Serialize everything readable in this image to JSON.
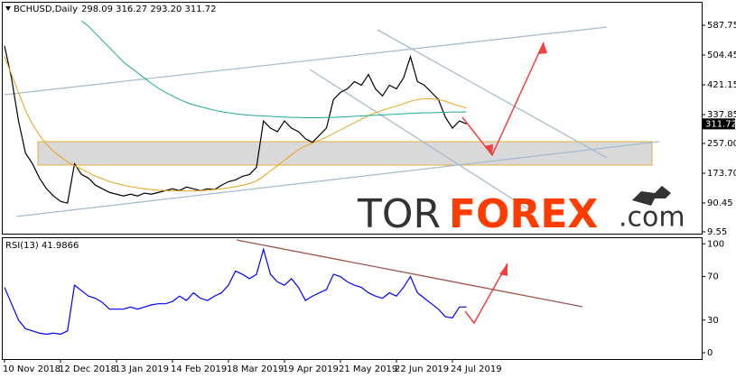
{
  "chart_data": [
    {
      "type": "line",
      "title": "BCHUSD,Daily",
      "subtitle": "298.09 316.27 293.20 311.72",
      "categories": [
        "10 Nov 2018",
        null,
        null,
        null,
        null,
        null,
        null,
        null,
        "12 Dec 2018",
        null,
        null,
        null,
        null,
        null,
        null,
        null,
        "13 Jan 2019",
        null,
        null,
        null,
        null,
        null,
        null,
        null,
        "14 Feb 2019",
        null,
        null,
        null,
        null,
        null,
        null,
        null,
        "18 Mar 2019",
        null,
        null,
        null,
        null,
        null,
        null,
        null,
        "19 Apr 2019",
        null,
        null,
        null,
        null,
        null,
        null,
        null,
        "21 May 2019",
        null,
        null,
        null,
        null,
        null,
        null,
        null,
        "22 Jun 2019",
        null,
        null,
        null,
        null,
        null,
        null,
        null,
        "24 Jul 2019",
        null,
        null
      ],
      "series": [
        {
          "color": "#000000",
          "values": [
            530,
            440,
            320,
            230,
            200,
            160,
            130,
            110,
            95,
            90,
            200,
            170,
            160,
            140,
            130,
            120,
            115,
            110,
            115,
            110,
            118,
            115,
            120,
            125,
            130,
            125,
            135,
            130,
            125,
            130,
            128,
            140,
            150,
            155,
            165,
            170,
            190,
            320,
            300,
            290,
            320,
            300,
            290,
            270,
            260,
            280,
            300,
            380,
            400,
            410,
            430,
            420,
            450,
            410,
            390,
            420,
            410,
            440,
            500,
            430,
            420,
            400,
            380,
            330,
            300,
            320,
            311.72
          ]
        },
        {
          "color": "#e8a317",
          "values": [
            500,
            450,
            400,
            350,
            310,
            280,
            255,
            235,
            220,
            205,
            195,
            185,
            175,
            165,
            158,
            150,
            145,
            140,
            136,
            133,
            130,
            128,
            126,
            125,
            124,
            124,
            124,
            124,
            125,
            126,
            128,
            130,
            133,
            136,
            140,
            145,
            152,
            165,
            180,
            195,
            210,
            225,
            240,
            250,
            258,
            266,
            275,
            285,
            295,
            305,
            315,
            325,
            335,
            343,
            350,
            356,
            362,
            368,
            375,
            380,
            382,
            382,
            380,
            375,
            368,
            362,
            356
          ]
        },
        {
          "color": "#20a89a",
          "values": [
            null,
            null,
            null,
            null,
            null,
            null,
            null,
            null,
            null,
            null,
            null,
            600,
            585,
            565,
            545,
            525,
            505,
            485,
            470,
            455,
            440,
            425,
            412,
            400,
            390,
            380,
            372,
            365,
            360,
            355,
            350,
            346,
            343,
            340,
            338,
            336,
            335,
            334,
            333,
            332,
            331,
            330,
            330,
            329,
            329,
            329,
            330,
            330,
            331,
            332,
            333,
            334,
            335,
            336,
            337,
            338,
            339,
            340,
            341,
            342,
            343,
            343,
            344,
            344,
            345,
            345,
            345
          ]
        }
      ],
      "ylim": [
        4.5,
        651
      ],
      "yticks": [
        587.75,
        504.45,
        421.15,
        337.85,
        {
          "value": 257,
          "label": "257.00"
        },
        {
          "value": 173.7,
          "label": "173.70"
        },
        90.45,
        9.55
      ],
      "grid": false
    },
    {
      "type": "line",
      "title": "RSI(13) 41.9866",
      "series": [
        {
          "color": "#0000ff",
          "values": [
            60,
            45,
            30,
            22,
            20,
            18,
            17,
            18,
            17,
            20,
            62,
            57,
            52,
            50,
            46,
            40,
            40,
            40,
            42,
            40,
            42,
            44,
            45,
            45,
            47,
            52,
            48,
            55,
            50,
            48,
            52,
            55,
            62,
            75,
            72,
            68,
            72,
            95,
            72,
            65,
            62,
            68,
            60,
            48,
            52,
            55,
            58,
            72,
            70,
            65,
            62,
            60,
            55,
            52,
            50,
            55,
            52,
            60,
            70,
            55,
            50,
            45,
            40,
            33,
            32,
            42,
            41.99
          ]
        }
      ],
      "ylim": [
        -5.8,
        105.2
      ],
      "yticks": [
        0,
        30,
        70,
        100
      ],
      "grid": false
    }
  ],
  "watermark": [
    "TOR",
    "FOREX",
    ".com"
  ]
}
